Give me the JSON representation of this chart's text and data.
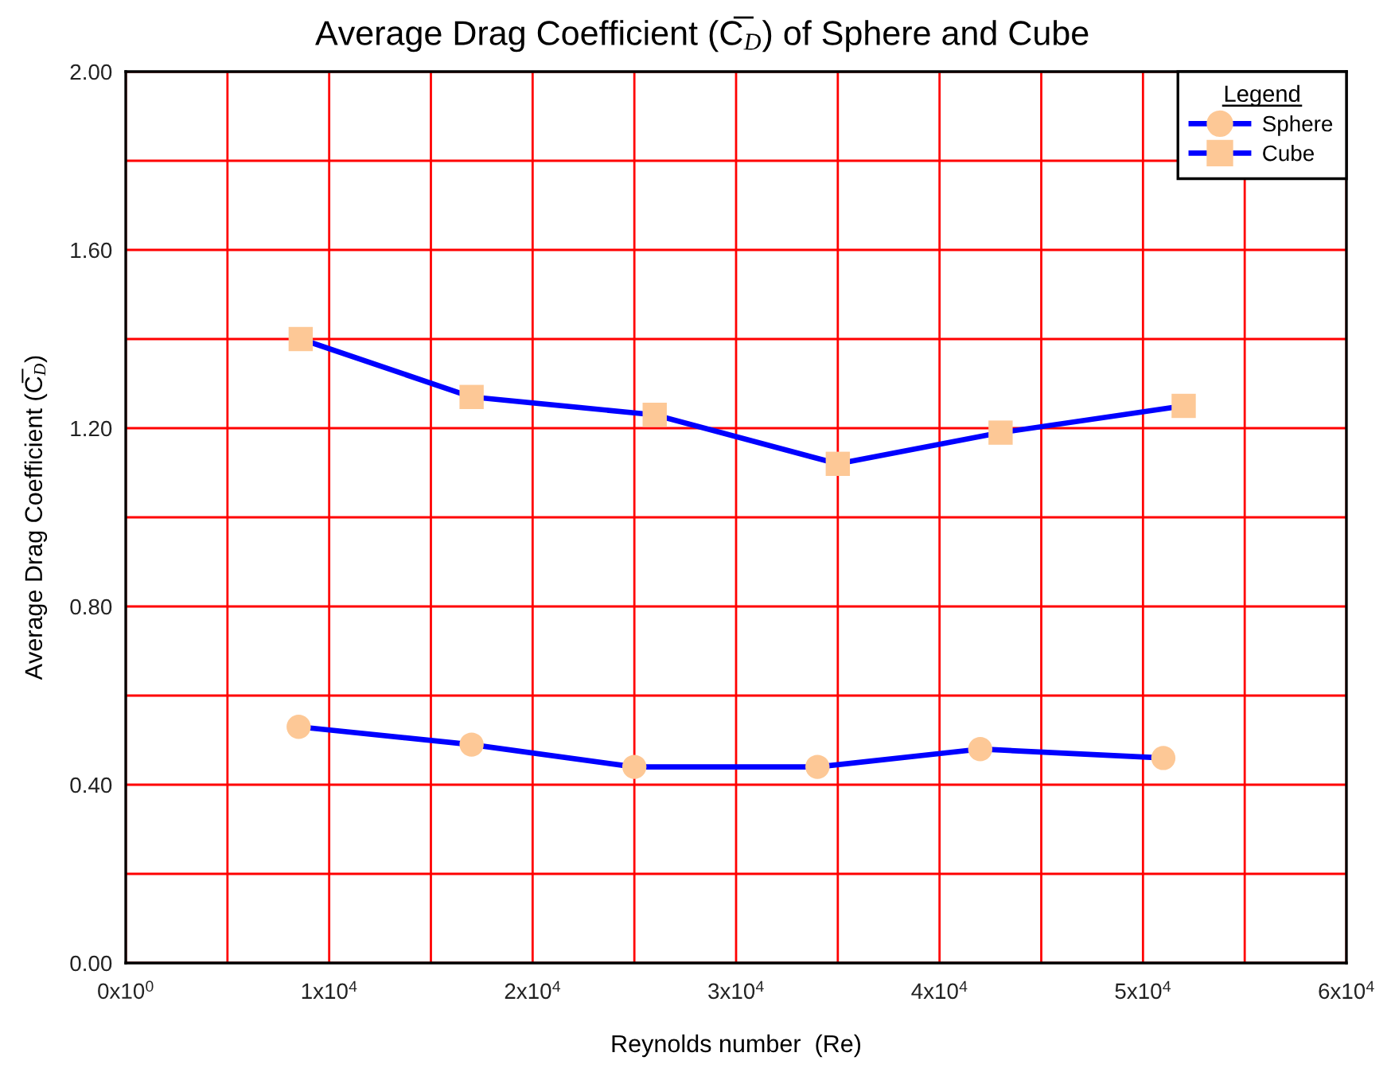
{
  "chart_data": {
    "type": "line",
    "title": "Average Drag Coefficient (C̅$_{D}$) of Sphere and Cube",
    "xlabel": "Reynolds number  (Re)",
    "ylabel": "Average Drag Coefficient (C̅$_{D}$)",
    "legend_title": "Legend",
    "xlim": [
      0,
      60000
    ],
    "ylim": [
      0,
      2.0
    ],
    "xticks": [
      {
        "value": 0,
        "label": "0x10$^{0}$"
      },
      {
        "value": 5000,
        "label": null
      },
      {
        "value": 10000,
        "label": "1x10$^{4}$"
      },
      {
        "value": 15000,
        "label": null
      },
      {
        "value": 20000,
        "label": "2x10$^{4}$"
      },
      {
        "value": 25000,
        "label": null
      },
      {
        "value": 30000,
        "label": "3x10$^{4}$"
      },
      {
        "value": 35000,
        "label": null
      },
      {
        "value": 40000,
        "label": "4x10$^{4}$"
      },
      {
        "value": 45000,
        "label": null
      },
      {
        "value": 50000,
        "label": "5x10$^{4}$"
      },
      {
        "value": 55000,
        "label": null
      },
      {
        "value": 60000,
        "label": "6x10$^{4}$"
      }
    ],
    "yticks": [
      {
        "value": 0,
        "label": "0.00"
      },
      {
        "value": 0.2,
        "label": null
      },
      {
        "value": 0.4,
        "label": "0.40"
      },
      {
        "value": 0.6,
        "label": null
      },
      {
        "value": 0.8,
        "label": "0.80"
      },
      {
        "value": 1.0,
        "label": null
      },
      {
        "value": 1.2,
        "label": "1.20"
      },
      {
        "value": 1.4,
        "label": null
      },
      {
        "value": 1.6,
        "label": "1.60"
      },
      {
        "value": 1.8,
        "label": null
      },
      {
        "value": 2.0,
        "label": "2.00"
      }
    ],
    "grid": true,
    "legend": "top right",
    "line_style": "solid",
    "series": [
      {
        "name": "Sphere",
        "marker": "circle",
        "color": "#0000ff",
        "colors": [
          "#fdc896",
          "#fdc896",
          "#fdc896",
          "#fdc896",
          "#fdc896",
          "#fdc896"
        ],
        "x": [
          8500,
          17000,
          25000,
          34000,
          42000,
          51000
        ],
        "values": [
          0.53,
          0.49,
          0.44,
          0.44,
          0.48,
          0.46
        ]
      },
      {
        "name": "Cube",
        "marker": "square",
        "color": "#0000ff",
        "colors": [
          "#fdc896",
          "#fdc896",
          "#fdc896",
          "#fdc896",
          "#fdc896",
          "#fdc896"
        ],
        "x": [
          8600,
          17000,
          26000,
          35000,
          43000,
          52000
        ],
        "values": [
          1.4,
          1.27,
          1.23,
          1.12,
          1.19,
          1.25
        ]
      }
    ]
  }
}
